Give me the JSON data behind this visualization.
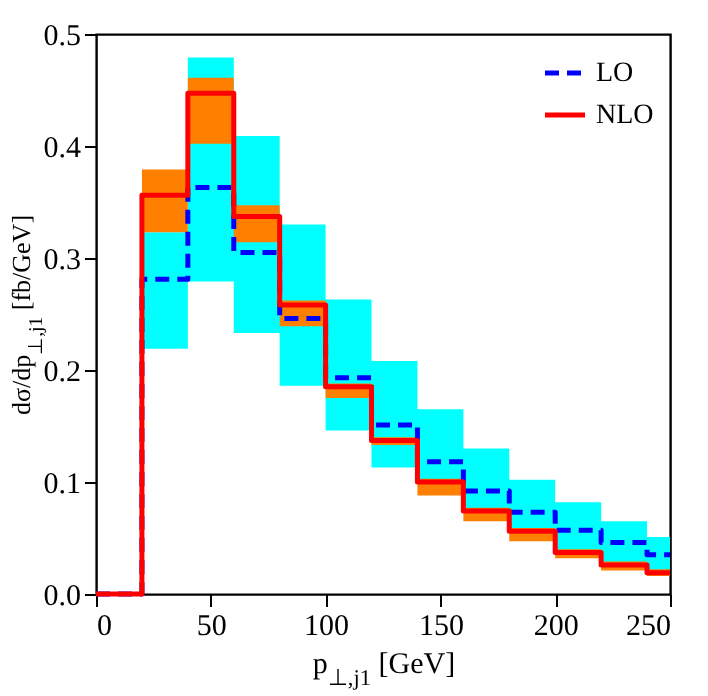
{
  "chart_data": {
    "type": "step",
    "xlabel": "p$_{⊥,j1}$ [GeV]",
    "ylabel": "dσ/dp$_{⊥,j1}$ [fb/GeV]",
    "x": [
      0,
      20,
      40,
      60,
      80,
      100,
      120,
      140,
      160,
      180,
      200,
      220,
      240,
      250
    ],
    "xlim": [
      0,
      250
    ],
    "xticks": [
      0,
      50,
      100,
      150,
      200,
      250
    ],
    "ylim": [
      0,
      0.5
    ],
    "yticks": [
      {
        "value": 0,
        "label": "0.0"
      },
      {
        "value": 0.1,
        "label": "0.1"
      },
      {
        "value": 0.2,
        "label": "0.2"
      },
      {
        "value": 0.3,
        "label": "0.3"
      },
      {
        "value": 0.4,
        "label": "0.4"
      },
      {
        "value": 0.5,
        "label": "0.5"
      }
    ],
    "legend": "top right",
    "series": [
      {
        "name": "LO",
        "color": "#0000ff",
        "line_style": "dashed",
        "values": [
          0,
          0.281,
          0.363,
          0.305,
          0.246,
          0.193,
          0.151,
          0.118,
          0.092,
          0.073,
          0.057,
          0.046,
          0.035,
          0.035
        ],
        "lower": [
          null,
          0.219,
          0.279,
          0.233,
          0.186,
          0.146,
          0.113,
          0.1,
          0.074,
          0.056,
          0.033,
          0.023,
          0.016,
          0.016
        ],
        "upper": [
          null,
          0.323,
          0.479,
          0.409,
          0.33,
          0.263,
          0.208,
          0.165,
          0.13,
          0.102,
          0.082,
          0.065,
          0.051,
          0.051
        ]
      },
      {
        "name": "NLO",
        "color": "#ff0000",
        "line_style": "solid",
        "values": [
          0,
          0.356,
          0.447,
          0.337,
          0.258,
          0.185,
          0.137,
          0.1,
          0.074,
          0.056,
          0.037,
          0.026,
          0.019,
          0.019
        ],
        "lower": [
          null,
          0.323,
          0.402,
          0.314,
          0.239,
          0.175,
          0.133,
          0.088,
          0.065,
          0.047,
          0.032,
          0.021,
          0.016,
          0.016
        ],
        "upper": [
          null,
          0.379,
          0.461,
          0.347,
          0.262,
          0.188,
          0.14,
          0.103,
          0.077,
          0.059,
          0.04,
          0.029,
          0.022,
          0.022
        ]
      }
    ]
  }
}
